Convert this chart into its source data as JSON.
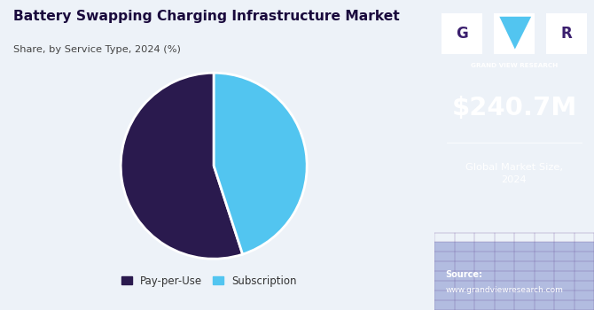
{
  "title": "Battery Swapping Charging Infrastructure Market",
  "subtitle": "Share, by Service Type, 2024 (%)",
  "pie_labels": [
    "Pay-per-Use",
    "Subscription"
  ],
  "pie_values": [
    55,
    45
  ],
  "pie_colors": [
    "#2a1a4e",
    "#52c5f0"
  ],
  "pie_startangle": 90,
  "left_bg": "#edf2f8",
  "right_bg": "#3b1f6e",
  "market_size_text": "$240.7M",
  "market_size_label": "Global Market Size,\n2024",
  "source_label": "Source:",
  "source_url": "www.grandviewresearch.com",
  "logo_text": "GRAND VIEW RESEARCH",
  "title_color": "#1a0a3d",
  "subtitle_color": "#444444",
  "legend_color": "#333333",
  "right_text_color": "#ffffff",
  "grid_color": "#5a3a8a",
  "bottom_grid_color": "#6b7cc4",
  "cyan_color": "#52c5f0"
}
